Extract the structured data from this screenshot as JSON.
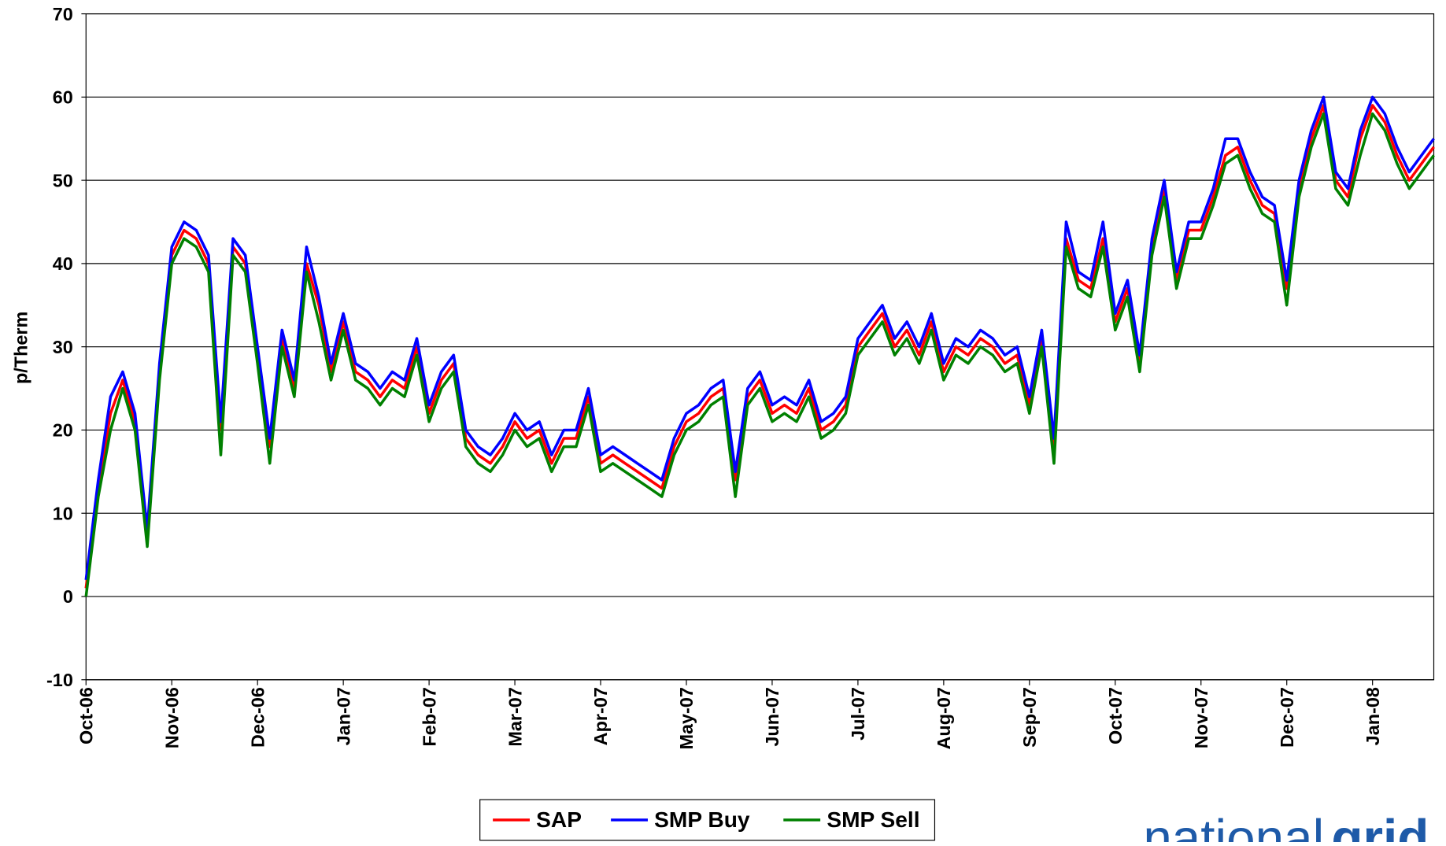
{
  "chart_data": {
    "type": "line",
    "y_label": "p/Therm",
    "categories": [
      "Oct-06",
      null,
      null,
      null,
      null,
      null,
      null,
      "Nov-06",
      null,
      null,
      null,
      null,
      null,
      null,
      "Dec-06",
      null,
      null,
      null,
      null,
      null,
      null,
      "Jan-07",
      null,
      null,
      null,
      null,
      null,
      null,
      "Feb-07",
      null,
      null,
      null,
      null,
      null,
      null,
      "Mar-07",
      null,
      null,
      null,
      null,
      null,
      null,
      "Apr-07",
      null,
      null,
      null,
      null,
      null,
      null,
      "May-07",
      null,
      null,
      null,
      null,
      null,
      null,
      "Jun-07",
      null,
      null,
      null,
      null,
      null,
      null,
      "Jul-07",
      null,
      null,
      null,
      null,
      null,
      null,
      "Aug-07",
      null,
      null,
      null,
      null,
      null,
      null,
      "Sep-07",
      null,
      null,
      null,
      null,
      null,
      null,
      "Oct-07",
      null,
      null,
      null,
      null,
      null,
      null,
      "Nov-07",
      null,
      null,
      null,
      null,
      null,
      null,
      "Dec-07",
      null,
      null,
      null,
      null,
      null,
      null,
      "Jan-08",
      null,
      null,
      null,
      null,
      null
    ],
    "series": [
      {
        "name": "SAP",
        "color": "#ff0000",
        "values": [
          1,
          13,
          22,
          26,
          21,
          7,
          27,
          41,
          44,
          43,
          40,
          20,
          42,
          40,
          29,
          18,
          31,
          25,
          40,
          35,
          27,
          33,
          27,
          26,
          24,
          26,
          25,
          30,
          22,
          26,
          28,
          19,
          17,
          16,
          18,
          21,
          19,
          20,
          16,
          19,
          19,
          24,
          16,
          17,
          16,
          15,
          14,
          13,
          18,
          21,
          22,
          24,
          25,
          14,
          24,
          26,
          22,
          23,
          22,
          25,
          20,
          21,
          23,
          30,
          32,
          34,
          30,
          32,
          29,
          33,
          27,
          30,
          29,
          31,
          30,
          28,
          29,
          23,
          31,
          18,
          43,
          38,
          37,
          43,
          33,
          37,
          28,
          42,
          49,
          38,
          44,
          44,
          48,
          53,
          54,
          50,
          47,
          46,
          37,
          49,
          55,
          59,
          50,
          48,
          55,
          59,
          57,
          53,
          50,
          52,
          54
        ]
      },
      {
        "name": "SMP Buy",
        "color": "#0000ff",
        "values": [
          2,
          14,
          24,
          27,
          22,
          8,
          28,
          42,
          45,
          44,
          41,
          21,
          43,
          41,
          30,
          19,
          32,
          26,
          42,
          36,
          28,
          34,
          28,
          27,
          25,
          27,
          26,
          31,
          23,
          27,
          29,
          20,
          18,
          17,
          19,
          22,
          20,
          21,
          17,
          20,
          20,
          25,
          17,
          18,
          17,
          16,
          15,
          14,
          19,
          22,
          23,
          25,
          26,
          15,
          25,
          27,
          23,
          24,
          23,
          26,
          21,
          22,
          24,
          31,
          33,
          35,
          31,
          33,
          30,
          34,
          28,
          31,
          30,
          32,
          31,
          29,
          30,
          24,
          32,
          19,
          45,
          39,
          38,
          45,
          34,
          38,
          29,
          43,
          50,
          39,
          45,
          45,
          49,
          55,
          55,
          51,
          48,
          47,
          38,
          50,
          56,
          60,
          51,
          49,
          56,
          60,
          58,
          54,
          51,
          53,
          55
        ]
      },
      {
        "name": "SMP Sell",
        "color": "#008000",
        "values": [
          0,
          12,
          20,
          25,
          20,
          6,
          26,
          40,
          43,
          42,
          39,
          17,
          41,
          39,
          28,
          16,
          30,
          24,
          39,
          33,
          26,
          32,
          26,
          25,
          23,
          25,
          24,
          29,
          21,
          25,
          27,
          18,
          16,
          15,
          17,
          20,
          18,
          19,
          15,
          18,
          18,
          23,
          15,
          16,
          15,
          14,
          13,
          12,
          17,
          20,
          21,
          23,
          24,
          12,
          23,
          25,
          21,
          22,
          21,
          24,
          19,
          20,
          22,
          29,
          31,
          33,
          29,
          31,
          28,
          32,
          26,
          29,
          28,
          30,
          29,
          27,
          28,
          22,
          30,
          16,
          42,
          37,
          36,
          42,
          32,
          36,
          27,
          41,
          48,
          37,
          43,
          43,
          47,
          52,
          53,
          49,
          46,
          45,
          35,
          48,
          54,
          58,
          49,
          47,
          53,
          58,
          56,
          52,
          49,
          51,
          53
        ]
      }
    ],
    "ylim": [
      -10,
      70
    ],
    "yticks": [
      -10,
      0,
      10,
      20,
      30,
      40,
      50,
      60,
      70
    ],
    "grid": true,
    "legend": "bottom"
  },
  "logo": {
    "light": "national",
    "bold": "grid"
  }
}
